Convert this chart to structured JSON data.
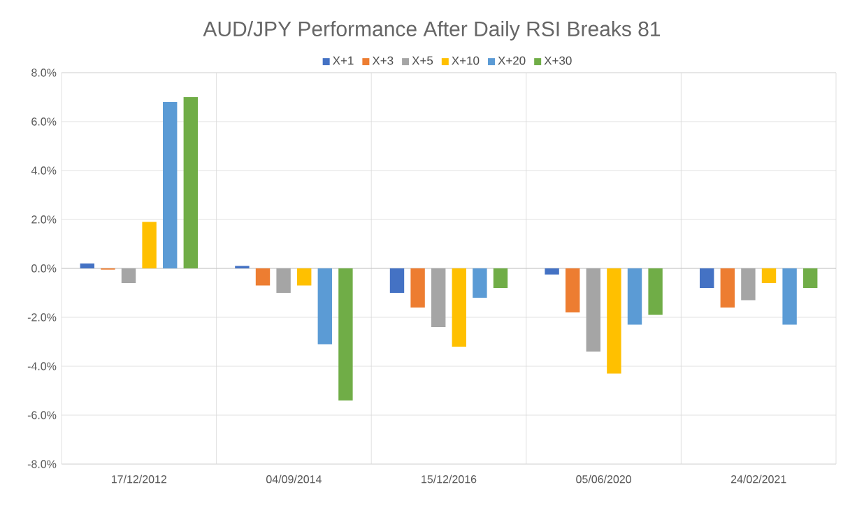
{
  "chart_data": {
    "type": "bar",
    "title": "AUD/JPY Performance After Daily RSI Breaks 81",
    "categories": [
      "17/12/2012",
      "04/09/2014",
      "15/12/2016",
      "05/06/2020",
      "24/02/2021"
    ],
    "series": [
      {
        "name": "X+1",
        "color": "#4472c4",
        "values": [
          0.2,
          0.1,
          -1.0,
          -0.25,
          -0.8
        ]
      },
      {
        "name": "X+3",
        "color": "#ed7d31",
        "values": [
          -0.05,
          -0.7,
          -1.6,
          -1.8,
          -1.6
        ]
      },
      {
        "name": "X+5",
        "color": "#a5a5a5",
        "values": [
          -0.6,
          -1.0,
          -2.4,
          -3.4,
          -1.3
        ]
      },
      {
        "name": "X+10",
        "color": "#ffc000",
        "values": [
          1.9,
          -0.7,
          -3.2,
          -4.3,
          -0.6
        ]
      },
      {
        "name": "X+20",
        "color": "#5b9bd5",
        "values": [
          6.8,
          -3.1,
          -1.2,
          -2.3,
          -2.3
        ]
      },
      {
        "name": "X+30",
        "color": "#70ad47",
        "values": [
          7.0,
          -5.4,
          -0.8,
          -1.9,
          -0.8
        ]
      }
    ],
    "ylim": [
      -8,
      8
    ],
    "yticks": [
      {
        "value": -8,
        "label": "-8.0%"
      },
      {
        "value": -6,
        "label": "-6.0%"
      },
      {
        "value": -4,
        "label": "-4.0%"
      },
      {
        "value": -2,
        "label": "-2.0%"
      },
      {
        "value": 0,
        "label": "0.0%"
      },
      {
        "value": 2,
        "label": "2.0%"
      },
      {
        "value": 4,
        "label": "4.0%"
      },
      {
        "value": 6,
        "label": "6.0%"
      },
      {
        "value": 8,
        "label": "8.0%"
      }
    ],
    "grid": true,
    "legend": "top"
  }
}
